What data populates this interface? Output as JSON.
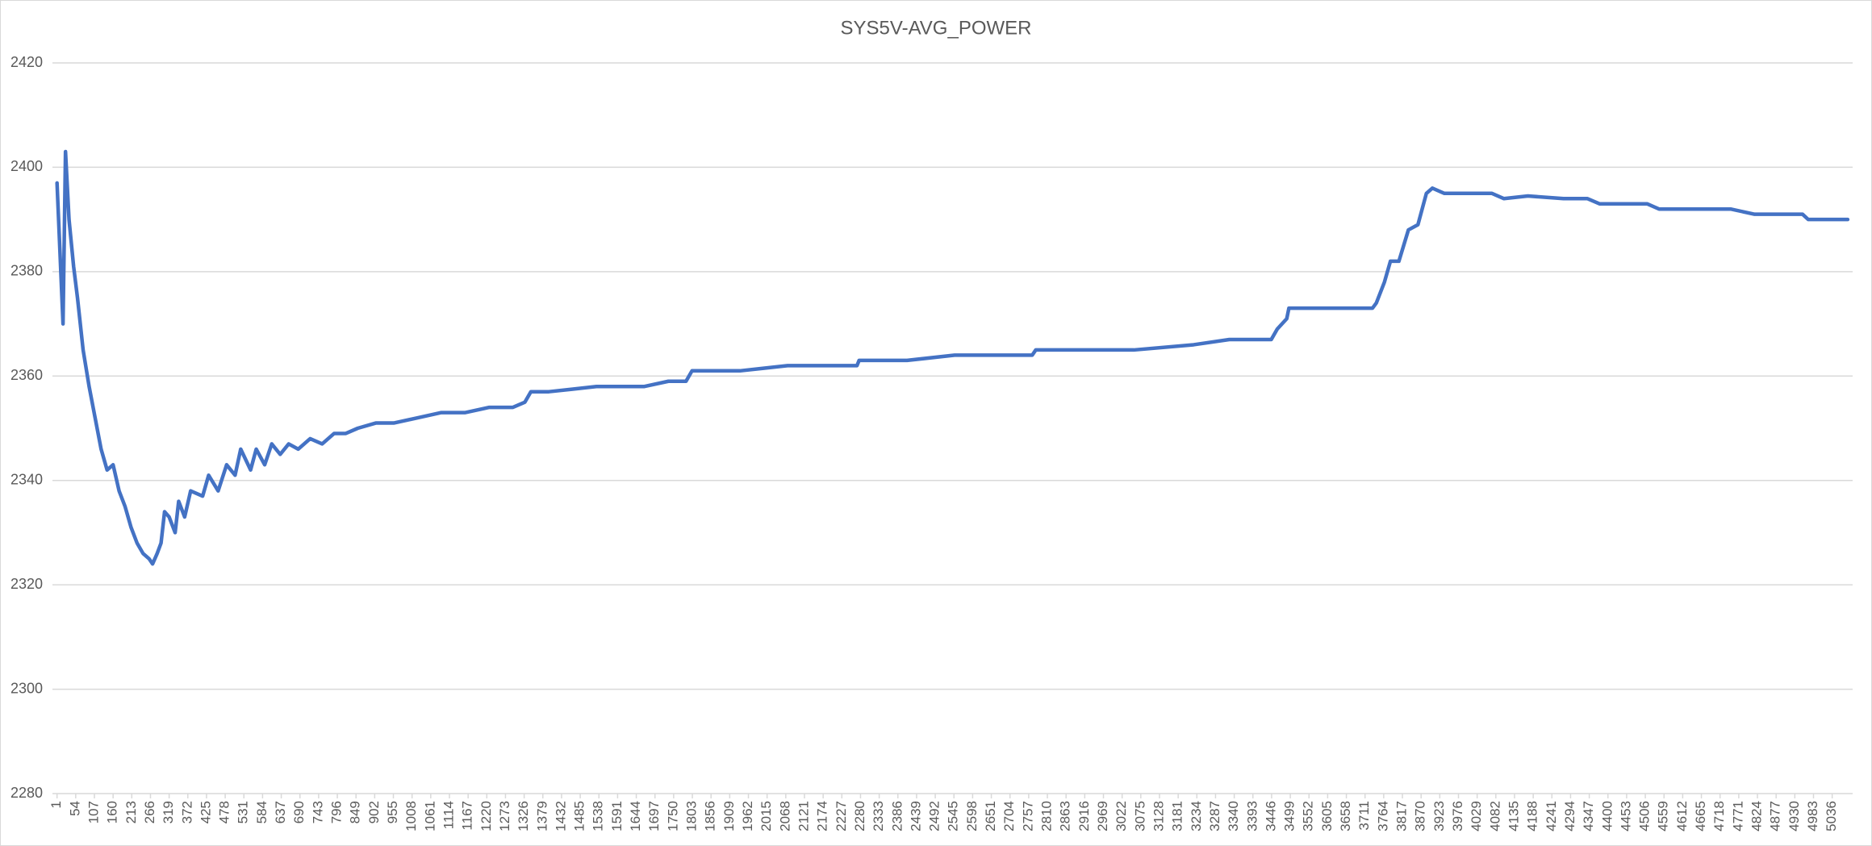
{
  "chart_data": {
    "type": "line",
    "title": "SYS5V-AVG_POWER",
    "x": [
      1,
      18,
      25,
      35,
      48,
      59,
      75,
      92,
      109,
      126,
      143,
      160,
      177,
      194,
      211,
      228,
      245,
      262,
      272,
      285,
      296,
      306,
      319,
      336,
      346,
      363,
      380,
      414,
      431,
      458,
      482,
      506,
      522,
      550,
      566,
      590,
      610,
      634,
      658,
      685,
      719,
      753,
      787,
      820,
      854,
      905,
      956,
      1024,
      1091,
      1159,
      1227,
      1294,
      1328,
      1345,
      1396,
      1464,
      1531,
      1599,
      1667,
      1735,
      1785,
      1802,
      1870,
      1938,
      2005,
      2073,
      2141,
      2209,
      2270,
      2276,
      2412,
      2547,
      2683,
      2767,
      2777,
      2886,
      3055,
      3225,
      3326,
      3445,
      3462,
      3489,
      3495,
      3563,
      3732,
      3743,
      3766,
      3783,
      3807,
      3834,
      3861,
      3885,
      3902,
      3936,
      4071,
      4105,
      4173,
      4274,
      4342,
      4376,
      4511,
      4545,
      4748,
      4816,
      4952,
      4968,
      5080
    ],
    "values": [
      2397,
      2370,
      2403,
      2390,
      2381,
      2375,
      2365,
      2358,
      2352,
      2346,
      2342,
      2343,
      2338,
      2335,
      2331,
      2328,
      2326,
      2325,
      2324,
      2326,
      2328,
      2334,
      2333,
      2330,
      2336,
      2333,
      2338,
      2337,
      2341,
      2338,
      2343,
      2341,
      2346,
      2342,
      2346,
      2343,
      2347,
      2345,
      2347,
      2346,
      2348,
      2347,
      2349,
      2349,
      2350,
      2351,
      2351,
      2352,
      2353,
      2353,
      2354,
      2354,
      2355,
      2357,
      2357,
      2357.5,
      2358,
      2358,
      2358,
      2359,
      2359,
      2361,
      2361,
      2361,
      2361.5,
      2362,
      2362,
      2362,
      2362,
      2363,
      2363,
      2364,
      2364,
      2364,
      2365,
      2365,
      2365,
      2366,
      2367,
      2367,
      2369,
      2371,
      2373,
      2373,
      2373,
      2374,
      2378,
      2382,
      2382,
      2388,
      2389,
      2395,
      2396,
      2395,
      2395,
      2394,
      2394.5,
      2394,
      2394,
      2393,
      2393,
      2392,
      2392,
      2391,
      2391,
      2390,
      2390
    ],
    "color": "#4472c4",
    "xlim": [
      -12,
      5094
    ],
    "xticks": [
      1,
      54,
      107,
      160,
      213,
      266,
      319,
      372,
      425,
      478,
      531,
      584,
      637,
      690,
      743,
      796,
      849,
      902,
      955,
      1008,
      1061,
      1114,
      1167,
      1220,
      1273,
      1326,
      1379,
      1432,
      1485,
      1538,
      1591,
      1644,
      1697,
      1750,
      1803,
      1856,
      1909,
      1962,
      2015,
      2068,
      2121,
      2174,
      2227,
      2280,
      2333,
      2386,
      2439,
      2492,
      2545,
      2598,
      2651,
      2704,
      2757,
      2810,
      2863,
      2916,
      2969,
      3022,
      3075,
      3128,
      3181,
      3234,
      3287,
      3340,
      3393,
      3446,
      3499,
      3552,
      3605,
      3658,
      3711,
      3764,
      3817,
      3870,
      3923,
      3976,
      4029,
      4082,
      4135,
      4188,
      4241,
      4294,
      4347,
      4400,
      4453,
      4506,
      4559,
      4612,
      4665,
      4718,
      4771,
      4824,
      4877,
      4930,
      4983,
      5036
    ],
    "ylim": [
      2280,
      2420
    ],
    "yticks": [
      2280,
      2300,
      2320,
      2340,
      2360,
      2380,
      2400,
      2420
    ],
    "grid": true
  }
}
